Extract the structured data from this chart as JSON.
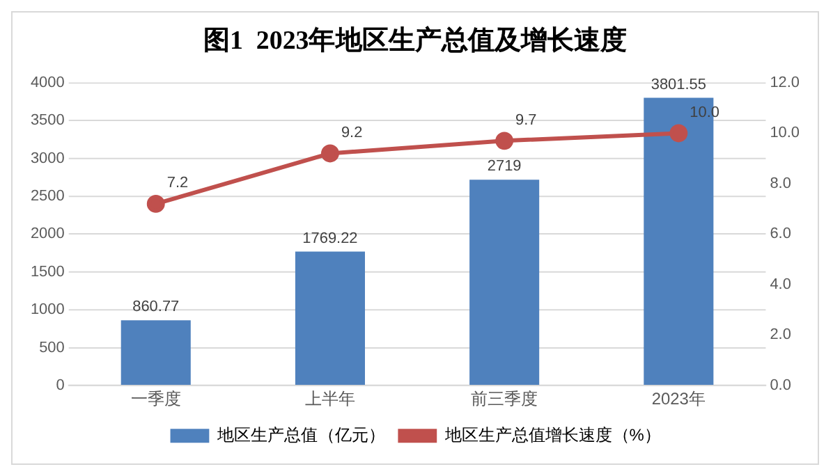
{
  "chart_data": {
    "type": "bar",
    "title": "图1  2023年地区生产总值及增长速度",
    "categories": [
      "一季度",
      "上半年",
      "前三季度",
      "2023年"
    ],
    "series": [
      {
        "name": "地区生产总值（亿元）",
        "color": "#4f81bd",
        "values": [
          860.77,
          1769.22,
          2719,
          3801.55
        ],
        "value_labels": [
          "860.77",
          "1769.22",
          "2719",
          "3801.55"
        ]
      },
      {
        "name": "地区生产总值增长速度（%）",
        "type": "line",
        "axis": "y2",
        "color": "#c0504d",
        "values": [
          7.2,
          9.2,
          9.7,
          10.0
        ],
        "value_labels": [
          "7.2",
          "9.2",
          "9.7",
          "10.0"
        ],
        "marker": "circle"
      }
    ],
    "ylim": [
      0,
      4000
    ],
    "yticks": [
      0,
      500,
      1000,
      1500,
      2000,
      2500,
      3000,
      3500,
      4000
    ],
    "y2lim": [
      0,
      12
    ],
    "y2ticks": [
      {
        "value": 0,
        "label": "0.0"
      },
      {
        "value": 2,
        "label": "2.0"
      },
      {
        "value": 4,
        "label": "4.0"
      },
      {
        "value": 6,
        "label": "6.0"
      },
      {
        "value": 8,
        "label": "8.0"
      },
      {
        "value": 10,
        "label": "10.0"
      },
      {
        "value": 12,
        "label": "12.0"
      }
    ],
    "grid": "y",
    "legend": "bottom"
  }
}
